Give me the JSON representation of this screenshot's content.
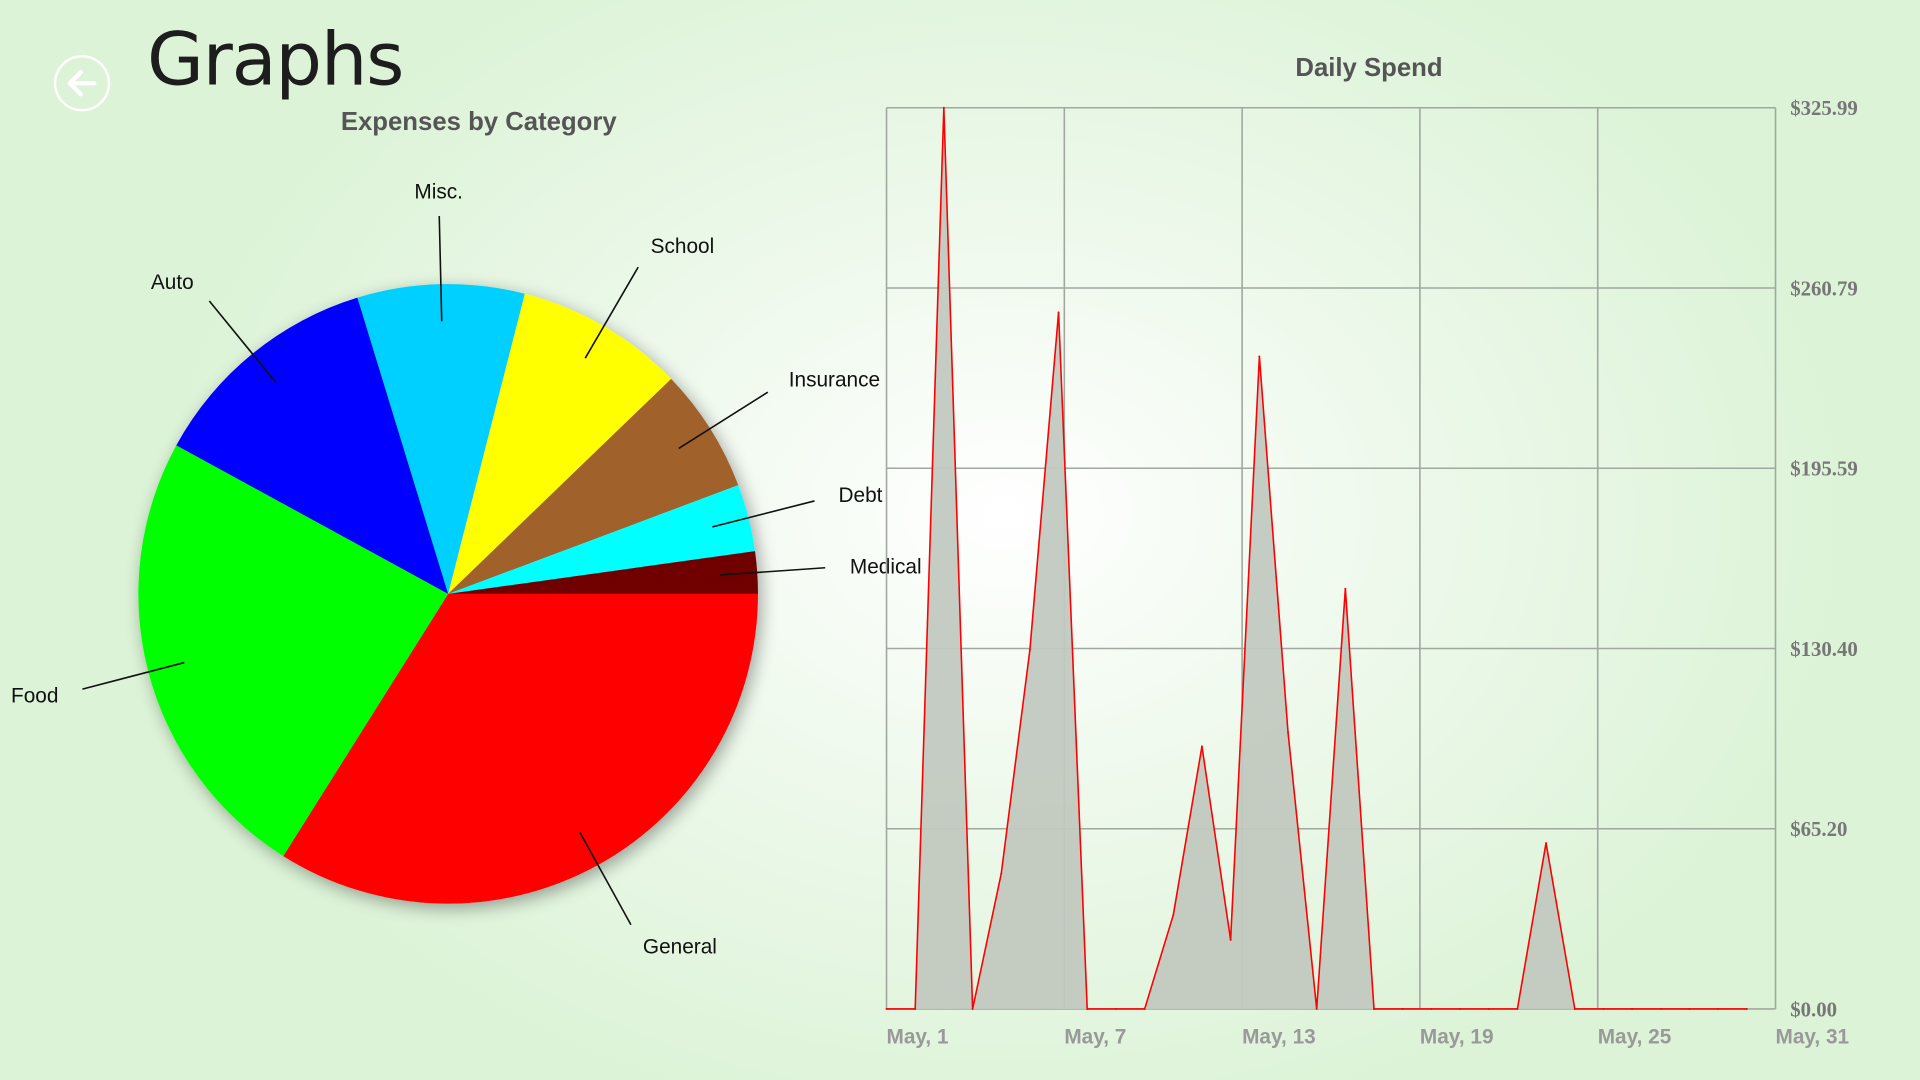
{
  "page": {
    "title": "Graphs",
    "back_icon": "arrow-left-circle-icon"
  },
  "chart_data": [
    {
      "type": "pie",
      "title": "Expenses by Category",
      "categories": [
        "General",
        "Food",
        "Auto",
        "Misc.",
        "School",
        "Insurance",
        "Debt",
        "Medical"
      ],
      "values": [
        33.9,
        24.0,
        12.3,
        8.7,
        8.8,
        6.5,
        3.5,
        2.2
      ],
      "unit": "percent (estimated)",
      "colors": [
        "#ff0000",
        "#00ff00",
        "#0000ff",
        "#00d0ff",
        "#ffff00",
        "#a0622a",
        "#00ffff",
        "#700000"
      ],
      "start": "east, clockwise"
    },
    {
      "type": "area",
      "title": "Daily Spend",
      "x_tick_labels": [
        "May, 1",
        "May, 7",
        "May, 13",
        "May, 19",
        "May, 25",
        "May, 31"
      ],
      "y_tick_labels": [
        "$0.00",
        "$65.20",
        "$130.40",
        "$195.59",
        "$260.79",
        "$325.99"
      ],
      "ylim": [
        0,
        325.99
      ],
      "x": [
        1,
        2,
        3,
        4,
        5,
        6,
        7,
        8,
        9,
        10,
        11,
        12,
        13,
        14,
        15,
        16,
        17,
        18,
        19,
        20,
        21,
        22,
        23,
        24,
        25,
        26,
        27,
        28,
        29,
        30,
        31
      ],
      "values": [
        0,
        0,
        325.99,
        0,
        49,
        130,
        252,
        0,
        0,
        0,
        34,
        95,
        25,
        236,
        100,
        0,
        152,
        0,
        0,
        0,
        0,
        0,
        0,
        60,
        0,
        0,
        0,
        0,
        0,
        0,
        0
      ],
      "line_color": "#ff0000",
      "fill_color": "#c2c9c0",
      "grid": true,
      "y_axis": "right"
    }
  ]
}
